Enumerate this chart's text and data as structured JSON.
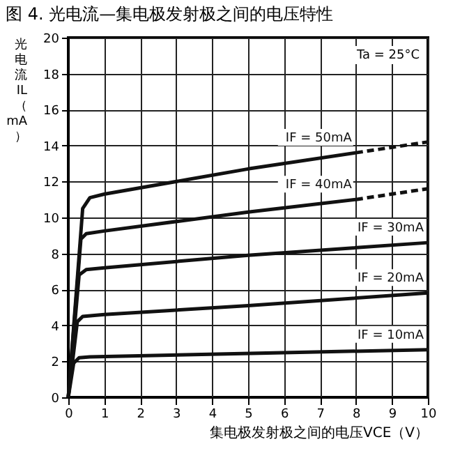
{
  "chart_data": {
    "type": "line",
    "title": "图 4. 光电流—集电极发射极之间的电压特性",
    "xlabel": "集电极发射极之间的电压VCE（V）",
    "ylabel": "光电流IL（mA）",
    "annotations": [
      "Ta = 25°C"
    ],
    "series": [
      {
        "name": "IF = 50mA",
        "color": "#111111",
        "x": [
          0,
          0.4,
          0.6,
          1,
          5,
          8
        ],
        "values": [
          0,
          10.5,
          11.1,
          11.3,
          12.7,
          13.6
        ]
      },
      {
        "color": "#111111",
        "line_style": "dashed",
        "x": [
          8,
          10
        ],
        "values": [
          13.6,
          14.2
        ]
      },
      {
        "name": "IF = 40mA",
        "color": "#111111",
        "x": [
          0,
          0.35,
          0.5,
          1,
          5,
          8
        ],
        "values": [
          0,
          8.8,
          9.1,
          9.25,
          10.3,
          11.0
        ]
      },
      {
        "color": "#111111",
        "line_style": "dashed",
        "x": [
          8,
          10
        ],
        "values": [
          11.0,
          11.6
        ]
      },
      {
        "name": "IF = 30mA",
        "color": "#111111",
        "x": [
          0,
          0.3,
          0.5,
          1,
          5,
          10
        ],
        "values": [
          0,
          6.8,
          7.1,
          7.2,
          7.9,
          8.6
        ]
      },
      {
        "name": "IF = 20mA",
        "color": "#111111",
        "x": [
          0,
          0.25,
          0.4,
          1,
          5,
          10
        ],
        "values": [
          0,
          4.2,
          4.5,
          4.6,
          5.1,
          5.8
        ]
      },
      {
        "name": "IF = 10mA",
        "color": "#111111",
        "x": [
          0,
          0.15,
          0.3,
          0.6,
          10
        ],
        "values": [
          0,
          1.9,
          2.2,
          2.25,
          2.65
        ]
      }
    ],
    "xlim": [
      0,
      10
    ],
    "xticks": [
      0,
      1,
      2,
      3,
      4,
      5,
      6,
      7,
      8,
      9,
      10
    ],
    "ylim": [
      0,
      20
    ],
    "yticks": [
      0,
      2,
      4,
      6,
      8,
      10,
      12,
      14,
      16,
      18,
      20
    ],
    "grid": true,
    "legend": false,
    "line_style": "solid",
    "marker": "none"
  }
}
